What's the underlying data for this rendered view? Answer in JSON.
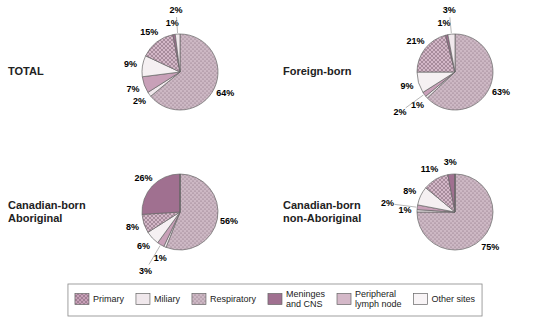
{
  "chart_data": [
    {
      "type": "pie",
      "title": "TOTAL",
      "values": [
        64,
        2,
        7,
        9,
        15,
        1,
        2
      ],
      "value_labels": [
        "64%",
        "2%",
        "7%",
        "9%",
        "15%",
        "1%",
        "2%"
      ],
      "colors": [
        "#cdb8c4",
        "#f0e8ec",
        "#c8a0b8",
        "#f5f0f2",
        "#d4b8c8",
        "#a07090",
        "#f0e8ec"
      ],
      "data_labels": true
    },
    {
      "type": "pie",
      "title": "Foreign-born",
      "values": [
        63,
        1,
        2,
        9,
        21,
        1,
        3
      ],
      "value_labels": [
        "63%",
        "1%",
        "2%",
        "9%",
        "21%",
        "1%",
        "3%"
      ],
      "colors": [
        "#cdb8c4",
        "#f0e8ec",
        "#c8a0b8",
        "#f5f0f2",
        "#d4b8c8",
        "#a07090",
        "#f0e8ec"
      ],
      "data_labels": true
    },
    {
      "type": "pie",
      "title": "Canadian-born\nAboriginal",
      "values": [
        56,
        1,
        3,
        6,
        8,
        26,
        0
      ],
      "value_labels": [
        "56%",
        "1%",
        "3%",
        "6%",
        "8%",
        "26%",
        null
      ],
      "colors": [
        "#cdb8c4",
        "#f0e8ec",
        "#c8a0b8",
        "#f5f0f2",
        "#d4b8c8",
        "#a07090",
        "#f0e8ec"
      ],
      "data_labels": true
    },
    {
      "type": "pie",
      "title": "Canadian-born\nnon-Aboriginal",
      "values": [
        75,
        1,
        2,
        8,
        11,
        3,
        0
      ],
      "value_labels": [
        "75%",
        "1%",
        "2%",
        "8%",
        "11%",
        "3%",
        null
      ],
      "colors": [
        "#cdb8c4",
        "#f0e8ec",
        "#c8a0b8",
        "#f5f0f2",
        "#d4b8c8",
        "#a07090",
        "#f0e8ec"
      ],
      "data_labels": true
    },
    {
      "type": "legend",
      "categories": [
        "Primary",
        "Miliary",
        "Respiratory",
        "Meninges\nand CNS",
        "Peripheral\nlymph node",
        "Other sites"
      ],
      "colors": [
        "#c8a0b8",
        "#f0e8ec",
        "#cdb8c4",
        "#a07090",
        "#d4b8c8",
        "#f8f4f6"
      ]
    }
  ]
}
